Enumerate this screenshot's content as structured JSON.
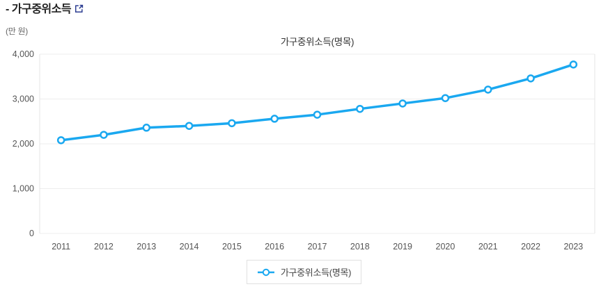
{
  "header": {
    "title": "- 가구중위소득",
    "external_link_icon": "open-in-new-window-icon"
  },
  "chart_data": {
    "type": "line",
    "title": "가구중위소득(명목)",
    "unit_label": "(만 원)",
    "categories": [
      "2011",
      "2012",
      "2013",
      "2014",
      "2015",
      "2016",
      "2017",
      "2018",
      "2019",
      "2020",
      "2021",
      "2022",
      "2023"
    ],
    "series": [
      {
        "name": "가구중위소득(명목)",
        "marker": "open-circle",
        "values": [
          2080,
          2200,
          2360,
          2400,
          2460,
          2560,
          2650,
          2780,
          2900,
          3020,
          3210,
          3460,
          3770
        ]
      }
    ],
    "ylim": [
      0,
      4000
    ],
    "yticks": [
      {
        "value": 0,
        "label": "0"
      },
      {
        "value": 1000,
        "label": "1,000"
      },
      {
        "value": 2000,
        "label": "2,000"
      },
      {
        "value": 3000,
        "label": "3,000"
      },
      {
        "value": 4000,
        "label": "4,000"
      }
    ],
    "grid": true,
    "legend_position": "bottom"
  },
  "theme": {
    "series_color": "#1aa8f0",
    "icon_color": "#2d3e92",
    "grid_color": "#ededed",
    "axis_color": "#e4e4e4",
    "tick_color": "#555555",
    "title_color": "#222222",
    "chart_title_color": "#333333",
    "unit_color": "#666666",
    "legend_border": "#e0e0e0",
    "legend_text": "#444444"
  }
}
